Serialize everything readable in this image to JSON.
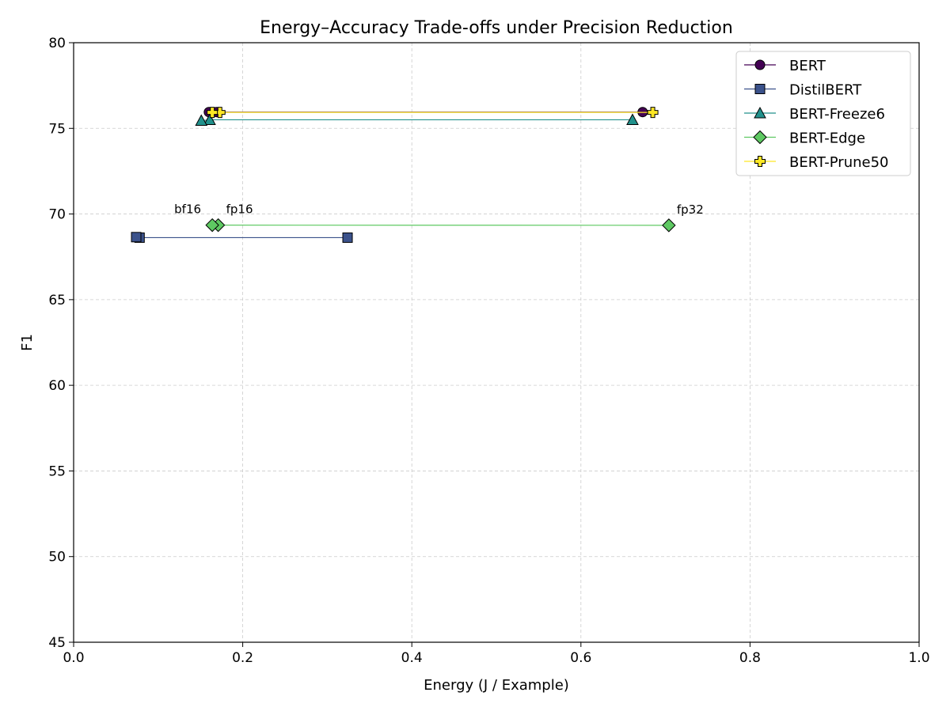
{
  "chart_data": {
    "type": "line",
    "title": "Energy–Accuracy Trade-offs under Precision Reduction",
    "xlabel": "Energy (J / Example)",
    "ylabel": "F1",
    "xlim": [
      0.0,
      1.0
    ],
    "ylim": [
      45,
      80
    ],
    "xticks": [
      "0.0",
      "0.2",
      "0.4",
      "0.6",
      "0.8",
      "1.0"
    ],
    "yticks": [
      "45",
      "50",
      "55",
      "60",
      "65",
      "70",
      "75",
      "80"
    ],
    "grid": true,
    "legend_position": "top-right",
    "series": [
      {
        "name": "BERT",
        "marker": "circle",
        "color": "#440154",
        "x": [
          0.673,
          0.169,
          0.16
        ],
        "y": [
          75.95,
          75.95,
          75.95
        ]
      },
      {
        "name": "DistilBERT",
        "marker": "square",
        "color": "#3b528b",
        "x": [
          0.324,
          0.078,
          0.074
        ],
        "y": [
          68.62,
          68.62,
          68.65
        ]
      },
      {
        "name": "BERT-Freeze6",
        "marker": "triangle",
        "color": "#21918c",
        "x": [
          0.661,
          0.161,
          0.151
        ],
        "y": [
          75.5,
          75.5,
          75.45
        ]
      },
      {
        "name": "BERT-Edge",
        "marker": "diamond",
        "color": "#5ec962",
        "x": [
          0.704,
          0.171,
          0.164
        ],
        "y": [
          69.34,
          69.35,
          69.35
        ]
      },
      {
        "name": "BERT-Prune50",
        "marker": "plus",
        "color": "#fde725",
        "x": [
          0.685,
          0.173,
          0.164
        ],
        "y": [
          75.93,
          75.93,
          75.93
        ]
      }
    ],
    "annotations": [
      {
        "text": "fp32",
        "x": 0.704,
        "y": 69.34
      },
      {
        "text": "fp16",
        "x": 0.171,
        "y": 69.35
      },
      {
        "text": "bf16",
        "x": 0.164,
        "y": 69.35
      }
    ]
  }
}
